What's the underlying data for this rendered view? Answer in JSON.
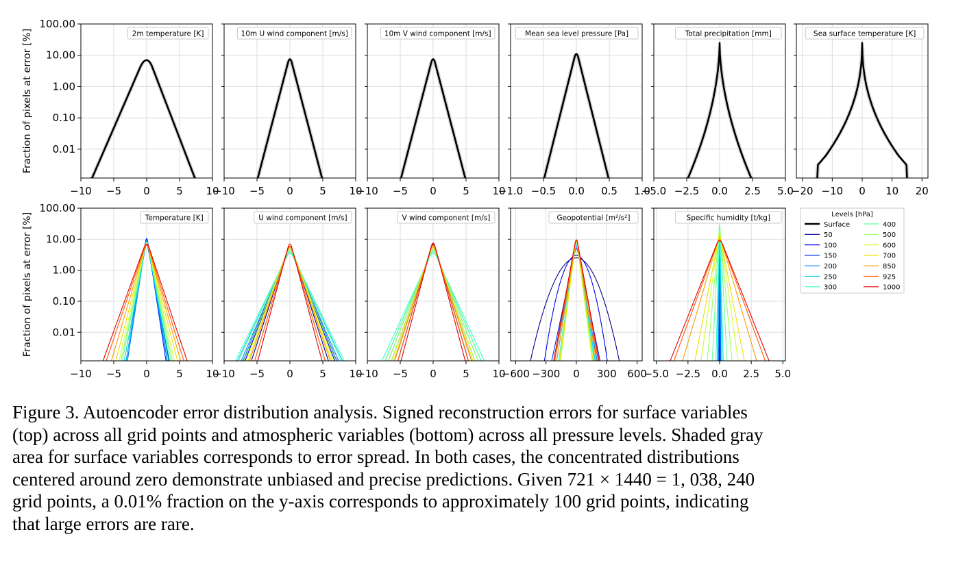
{
  "figure": {
    "ylabel": "Fraction of pixels at error [%]",
    "y_ticks": [
      "100.00",
      "10.00",
      "1.00",
      "0.10",
      "0.01"
    ],
    "y_tick_values": [
      100,
      10,
      1,
      0.1,
      0.01
    ],
    "y_scale": "log",
    "ylim": [
      0.0012,
      100
    ],
    "grid": true
  },
  "legend": {
    "title": "Levels [hPa]",
    "placement": "right of bottom row",
    "entries": [
      {
        "label": "Surface",
        "color": "#000000"
      },
      {
        "label": "50",
        "color": "#00008f"
      },
      {
        "label": "100",
        "color": "#0000e8"
      },
      {
        "label": "150",
        "color": "#0030ff"
      },
      {
        "label": "200",
        "color": "#0080ff"
      },
      {
        "label": "250",
        "color": "#00ccee"
      },
      {
        "label": "300",
        "color": "#33ffcc"
      },
      {
        "label": "400",
        "color": "#66ff99"
      },
      {
        "label": "500",
        "color": "#99ff66"
      },
      {
        "label": "600",
        "color": "#ccff33"
      },
      {
        "label": "700",
        "color": "#f0e000"
      },
      {
        "label": "850",
        "color": "#ff9900"
      },
      {
        "label": "925",
        "color": "#ff5500"
      },
      {
        "label": "1000",
        "color": "#e00000"
      }
    ]
  },
  "chart_data": [
    {
      "type": "line",
      "title": "2m temperature [K]",
      "row": "surface",
      "xlim": [
        -10,
        10
      ],
      "x_ticks": [
        "−10",
        "−5",
        "0",
        "5",
        "10"
      ],
      "x_tick_values": [
        -10,
        -5,
        0,
        5,
        10
      ],
      "series": [
        {
          "name": "Surface",
          "peak": 7,
          "width": 1.2,
          "tail": [
            -8.5,
            7.5
          ],
          "shape": "broad",
          "band": true
        }
      ]
    },
    {
      "type": "line",
      "title": "10m U wind component [m/s]",
      "row": "surface",
      "xlim": [
        -10,
        10
      ],
      "x_ticks": [
        "−10",
        "−5",
        "0",
        "5",
        "10"
      ],
      "x_tick_values": [
        -10,
        -5,
        0,
        5,
        10
      ],
      "series": [
        {
          "name": "Surface",
          "peak": 7.5,
          "width": 1,
          "tail": [
            -5,
            5
          ],
          "shape": "laplace",
          "band": true
        }
      ]
    },
    {
      "type": "line",
      "title": "10m V wind component [m/s]",
      "row": "surface",
      "xlim": [
        -10,
        10
      ],
      "x_ticks": [
        "−10",
        "−5",
        "0",
        "5",
        "10"
      ],
      "x_tick_values": [
        -10,
        -5,
        0,
        5,
        10
      ],
      "series": [
        {
          "name": "Surface",
          "peak": 7.5,
          "width": 1,
          "tail": [
            -5,
            5
          ],
          "shape": "laplace",
          "band": true
        }
      ]
    },
    {
      "type": "line",
      "title": "Mean sea level pressure [Pa]",
      "row": "surface",
      "xlim": [
        -1,
        1
      ],
      "x_ticks": [
        "−1.0",
        "−0.5",
        "0.0",
        "0.5",
        "1.0"
      ],
      "x_tick_values": [
        -1,
        -0.5,
        0,
        0.5,
        1
      ],
      "series": [
        {
          "name": "Surface",
          "peak": 11,
          "width": 1,
          "tail": [
            -0.5,
            0.5
          ],
          "shape": "laplace",
          "band": true
        }
      ]
    },
    {
      "type": "line",
      "title": "Total precipitation [mm]",
      "row": "surface",
      "xlim": [
        -5,
        5
      ],
      "x_ticks": [
        "−5.0",
        "−2.5",
        "0.0",
        "2.5",
        "5.0"
      ],
      "x_tick_values": [
        -5,
        -2.5,
        0,
        2.5,
        5
      ],
      "series": [
        {
          "name": "Surface",
          "peak": 25,
          "width": 1,
          "tail": [
            -2.5,
            2.5
          ],
          "shape": "cusp",
          "band": true
        }
      ]
    },
    {
      "type": "line",
      "title": "Sea surface temperature [K]",
      "row": "surface",
      "xlim": [
        -22,
        22
      ],
      "x_ticks": [
        "−20",
        "−10",
        "0",
        "10",
        "20"
      ],
      "x_tick_values": [
        -20,
        -10,
        0,
        10,
        20
      ],
      "series": [
        {
          "name": "Surface",
          "peak": 25,
          "width": 1,
          "tail": [
            -15,
            15
          ],
          "shape": "sst",
          "band": true
        }
      ]
    },
    {
      "type": "line",
      "title": "Temperature [K]",
      "row": "atmospheric",
      "xlim": [
        -10,
        10
      ],
      "x_ticks": [
        "−10",
        "−5",
        "0",
        "5",
        "10"
      ],
      "x_tick_values": [
        -10,
        -5,
        0,
        5,
        10
      ],
      "series": [
        {
          "name": "50",
          "peak": 7,
          "tail": [
            -3.5,
            3.5
          ]
        },
        {
          "name": "100",
          "peak": 10,
          "tail": [
            -3.2,
            3.2
          ]
        },
        {
          "name": "150",
          "peak": 10.5,
          "tail": [
            -3,
            3
          ]
        },
        {
          "name": "200",
          "peak": 9,
          "tail": [
            -3,
            3.2
          ]
        },
        {
          "name": "250",
          "peak": 8.5,
          "tail": [
            -3.2,
            3.4
          ]
        },
        {
          "name": "300",
          "peak": 8,
          "tail": [
            -3.5,
            3.6
          ]
        },
        {
          "name": "400",
          "peak": 8,
          "tail": [
            -3.8,
            3.8
          ]
        },
        {
          "name": "500",
          "peak": 7.5,
          "tail": [
            -4,
            4
          ]
        },
        {
          "name": "600",
          "peak": 7.5,
          "tail": [
            -4.3,
            4.3
          ]
        },
        {
          "name": "700",
          "peak": 7,
          "tail": [
            -4.8,
            4.8
          ]
        },
        {
          "name": "850",
          "peak": 6.5,
          "tail": [
            -5.5,
            5.3
          ]
        },
        {
          "name": "925",
          "peak": 6.5,
          "tail": [
            -6.3,
            5.8
          ]
        },
        {
          "name": "1000",
          "peak": 7,
          "tail": [
            -6.8,
            6.3
          ]
        }
      ]
    },
    {
      "type": "line",
      "title": "U wind component [m/s]",
      "row": "atmospheric",
      "xlim": [
        -10,
        10
      ],
      "x_ticks": [
        "−10",
        "−5",
        "0",
        "5",
        "10"
      ],
      "x_tick_values": [
        -10,
        -5,
        0,
        5,
        10
      ],
      "series": [
        {
          "name": "50",
          "peak": 6,
          "tail": [
            -6,
            6
          ]
        },
        {
          "name": "100",
          "peak": 5,
          "tail": [
            -7,
            7
          ]
        },
        {
          "name": "150",
          "peak": 4.5,
          "tail": [
            -7.3,
            7.3
          ]
        },
        {
          "name": "200",
          "peak": 4,
          "tail": [
            -7.6,
            7.6
          ]
        },
        {
          "name": "250",
          "peak": 3.5,
          "tail": [
            -8.2,
            8.2
          ]
        },
        {
          "name": "300",
          "peak": 3.5,
          "tail": [
            -8.5,
            8.5
          ]
        },
        {
          "name": "400",
          "peak": 4,
          "tail": [
            -8,
            8
          ]
        },
        {
          "name": "500",
          "peak": 4.5,
          "tail": [
            -7.2,
            7.2
          ]
        },
        {
          "name": "600",
          "peak": 5,
          "tail": [
            -6.8,
            6.8
          ]
        },
        {
          "name": "700",
          "peak": 5.5,
          "tail": [
            -6.5,
            6.5
          ]
        },
        {
          "name": "850",
          "peak": 5.5,
          "tail": [
            -6.3,
            6.3
          ]
        },
        {
          "name": "925",
          "peak": 6,
          "tail": [
            -5.5,
            5.5
          ]
        },
        {
          "name": "1000",
          "peak": 7,
          "tail": [
            -5,
            5
          ]
        }
      ]
    },
    {
      "type": "line",
      "title": "V wind component [m/s]",
      "row": "atmospheric",
      "xlim": [
        -10,
        10
      ],
      "x_ticks": [
        "−10",
        "−5",
        "0",
        "5",
        "10"
      ],
      "x_tick_values": [
        -10,
        -5,
        0,
        5,
        10
      ],
      "series": [
        {
          "name": "50",
          "peak": 7,
          "tail": [
            -5.5,
            5.5
          ]
        },
        {
          "name": "100",
          "peak": 6,
          "tail": [
            -6,
            6
          ]
        },
        {
          "name": "150",
          "peak": 5,
          "tail": [
            -6.5,
            6.5
          ]
        },
        {
          "name": "200",
          "peak": 4.5,
          "tail": [
            -7,
            7
          ]
        },
        {
          "name": "250",
          "peak": 4,
          "tail": [
            -7.5,
            7.5
          ]
        },
        {
          "name": "300",
          "peak": 3.5,
          "tail": [
            -8,
            8
          ]
        },
        {
          "name": "400",
          "peak": 4,
          "tail": [
            -7.5,
            7.5
          ]
        },
        {
          "name": "500",
          "peak": 4.5,
          "tail": [
            -7,
            7
          ]
        },
        {
          "name": "600",
          "peak": 5,
          "tail": [
            -6.5,
            6.5
          ]
        },
        {
          "name": "700",
          "peak": 5.5,
          "tail": [
            -6.2,
            6.2
          ]
        },
        {
          "name": "850",
          "peak": 6,
          "tail": [
            -6,
            6
          ]
        },
        {
          "name": "925",
          "peak": 6.5,
          "tail": [
            -5.5,
            5.5
          ]
        },
        {
          "name": "1000",
          "peak": 7.5,
          "tail": [
            -5,
            5
          ]
        }
      ]
    },
    {
      "type": "line",
      "title": "Geopotential [m²/s²]",
      "row": "atmospheric",
      "xlim": [
        -650,
        650
      ],
      "x_ticks": [
        "−600",
        "−300",
        "0",
        "300",
        "600"
      ],
      "x_tick_values": [
        -600,
        -300,
        0,
        300,
        600
      ],
      "series": [
        {
          "name": "50",
          "peak": 2.5,
          "tail": [
            -460,
            430
          ],
          "shape": "gauss"
        },
        {
          "name": "100",
          "peak": 3,
          "tail": [
            -320,
            310
          ],
          "shape": "gauss"
        },
        {
          "name": "150",
          "peak": 5,
          "tail": [
            -250,
            240
          ]
        },
        {
          "name": "200",
          "peak": 6,
          "tail": [
            -220,
            210
          ]
        },
        {
          "name": "250",
          "peak": 7,
          "tail": [
            -200,
            190
          ]
        },
        {
          "name": "300",
          "peak": 7.5,
          "tail": [
            -180,
            180
          ]
        },
        {
          "name": "400",
          "peak": 8,
          "tail": [
            -170,
            170
          ]
        },
        {
          "name": "500",
          "peak": 8.5,
          "tail": [
            -165,
            165
          ]
        },
        {
          "name": "600",
          "peak": 9,
          "tail": [
            -160,
            160
          ]
        },
        {
          "name": "700",
          "peak": 9,
          "tail": [
            -170,
            170
          ]
        },
        {
          "name": "850",
          "peak": 9,
          "tail": [
            -200,
            200
          ]
        },
        {
          "name": "925",
          "peak": 9.5,
          "tail": [
            -220,
            220
          ]
        },
        {
          "name": "1000",
          "peak": 9.5,
          "tail": [
            -230,
            230
          ]
        }
      ]
    },
    {
      "type": "line",
      "title": "Specific humidity [t/kg]",
      "row": "atmospheric",
      "xlim": [
        -5.2,
        5.2
      ],
      "x_ticks": [
        "−5.0",
        "−2.5",
        "0.0",
        "2.5",
        "5.0"
      ],
      "x_tick_values": [
        -5,
        -2.5,
        0,
        2.5,
        5
      ],
      "series": [
        {
          "name": "50",
          "peak": 9,
          "tail": [
            -0.02,
            0.02
          ]
        },
        {
          "name": "100",
          "peak": 10,
          "tail": [
            -0.04,
            0.04
          ]
        },
        {
          "name": "150",
          "peak": 12,
          "tail": [
            -0.06,
            0.06
          ]
        },
        {
          "name": "200",
          "peak": 15,
          "tail": [
            -0.1,
            0.1
          ]
        },
        {
          "name": "250",
          "peak": 20,
          "tail": [
            -0.2,
            0.2
          ]
        },
        {
          "name": "300",
          "peak": 25,
          "tail": [
            -0.3,
            0.3
          ]
        },
        {
          "name": "400",
          "peak": 30,
          "tail": [
            -0.6,
            0.6
          ]
        },
        {
          "name": "500",
          "peak": 20,
          "tail": [
            -1,
            1
          ]
        },
        {
          "name": "600",
          "peak": 15,
          "tail": [
            -1.5,
            1.5
          ]
        },
        {
          "name": "700",
          "peak": 12,
          "tail": [
            -2,
            2
          ]
        },
        {
          "name": "850",
          "peak": 10,
          "tail": [
            -3,
            3
          ]
        },
        {
          "name": "925",
          "peak": 9,
          "tail": [
            -3.7,
            3.7
          ]
        },
        {
          "name": "1000",
          "peak": 9,
          "tail": [
            -4,
            4
          ]
        }
      ]
    }
  ],
  "caption": {
    "lines": [
      "Figure 3. Autoencoder error distribution analysis. Signed reconstruction errors for surface variables",
      "(top) across all grid points and atmospheric variables (bottom) across all pressure levels. Shaded gray",
      "area for surface variables corresponds to error spread. In both cases, the concentrated distributions",
      "centered around zero demonstrate unbiased and precise predictions. Given 721 × 1440 = 1, 038, 240",
      "grid points, a 0.01% fraction on the y-axis corresponds to approximately 100 grid points, indicating",
      "that large errors are rare."
    ]
  }
}
